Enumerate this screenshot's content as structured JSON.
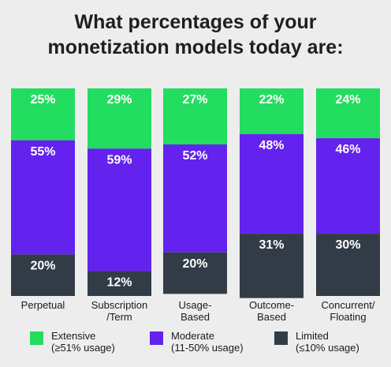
{
  "chart_data": {
    "type": "bar",
    "stacked": true,
    "title_lines": [
      "What percentages of your",
      "monetization models today are:"
    ],
    "categories": [
      [
        "Perpetual"
      ],
      [
        "Subscription",
        "/Term"
      ],
      [
        "Usage-",
        "Based"
      ],
      [
        "Outcome-",
        "Based"
      ],
      [
        "Concurrent/",
        "Floating"
      ]
    ],
    "series": [
      {
        "name": "Extensive",
        "name_detail": "(≥51% usage)",
        "color": "#22dd5f",
        "values": [
          25,
          29,
          27,
          22,
          24
        ],
        "labels": [
          "25%",
          "29%",
          "27%",
          "22%",
          "24%"
        ]
      },
      {
        "name": "Moderate",
        "name_detail": "(11-50% usage)",
        "color": "#6322ee",
        "values": [
          55,
          59,
          52,
          48,
          46
        ],
        "labels": [
          "55%",
          "59%",
          "52%",
          "48%",
          "46%"
        ]
      },
      {
        "name": "Limited",
        "name_detail": "(≤10% usage)",
        "color": "#323c46",
        "values": [
          20,
          12,
          20,
          31,
          30
        ],
        "labels": [
          "20%",
          "12%",
          "20%",
          "31%",
          "30%"
        ]
      }
    ],
    "ylim": [
      0,
      100
    ],
    "grid": false,
    "legend_position": "bottom"
  }
}
